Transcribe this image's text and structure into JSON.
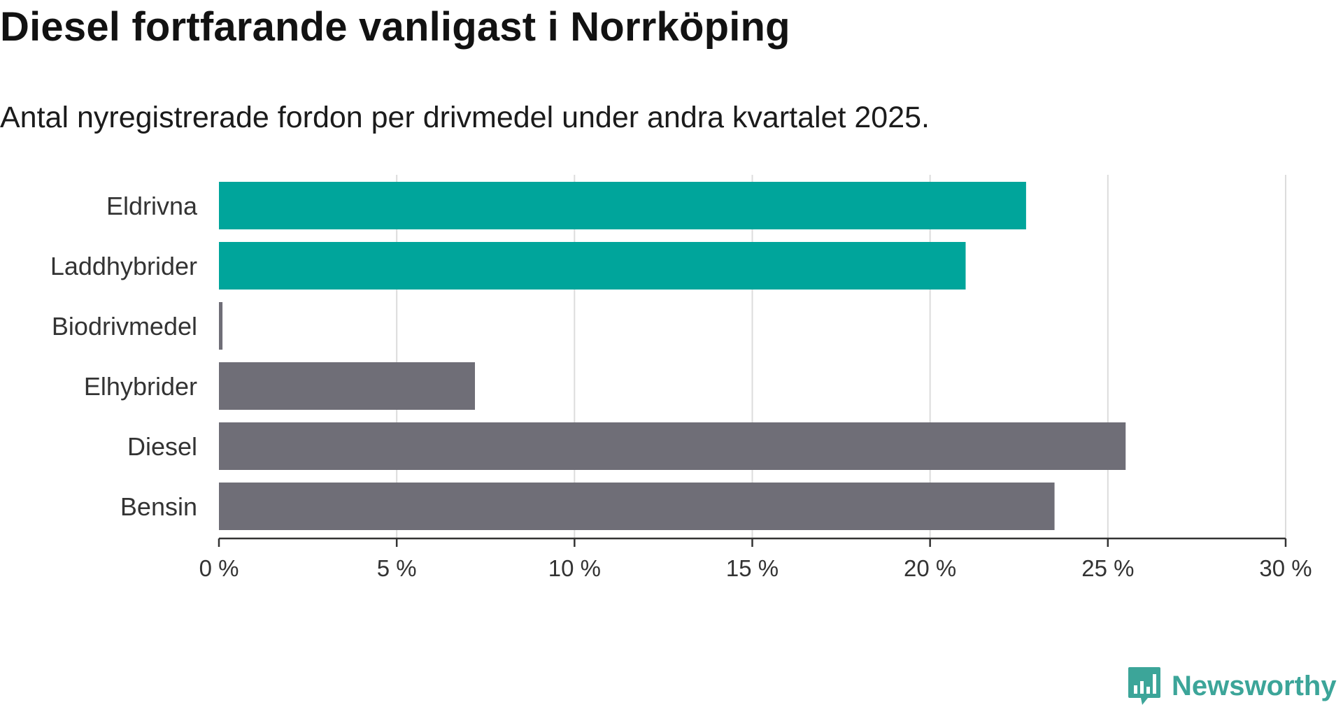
{
  "chart_data": {
    "type": "bar",
    "orientation": "horizontal",
    "title": "Diesel fortfarande vanligast i Norrköping",
    "subtitle": "Antal nyregistrerade fordon per drivmedel under andra kvartalet 2025.",
    "categories": [
      "Eldrivna",
      "Laddhybrider",
      "Biodrivmedel",
      "Elhybrider",
      "Diesel",
      "Bensin"
    ],
    "values": [
      22.7,
      21.0,
      0.1,
      7.2,
      25.5,
      23.5
    ],
    "bar_colors": [
      "#00a59b",
      "#00a59b",
      "#6f6e77",
      "#6f6e77",
      "#6f6e77",
      "#6f6e77"
    ],
    "x_ticks": [
      0,
      5,
      10,
      15,
      20,
      25,
      30
    ],
    "x_tick_labels": [
      "0 %",
      "5 %",
      "10 %",
      "15 %",
      "20 %",
      "25 %",
      "30 %"
    ],
    "xlim": [
      0,
      30
    ],
    "xlabel": "",
    "ylabel": "",
    "grid": true
  },
  "brand": {
    "name": "Newsworthy",
    "logo_icon": "newsworthy-chart-bubble-icon",
    "color": "#3ca599"
  }
}
